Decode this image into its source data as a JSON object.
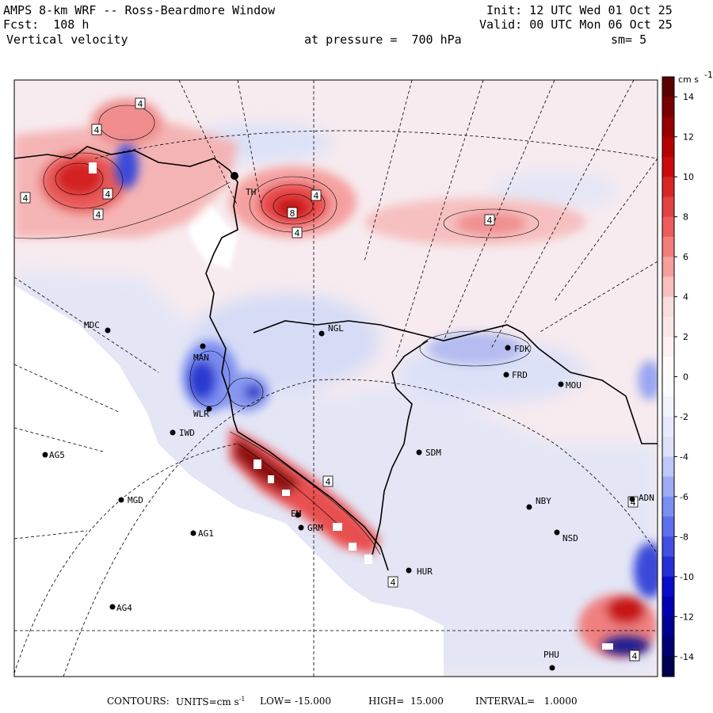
{
  "header": {
    "model": "AMPS 8-km WRF -- Ross-Beardmore Window",
    "forecast": "Fcst:  108 h",
    "field": "Vertical velocity",
    "init": "Init: 12 UTC Wed 01 Oct 25",
    "valid": "Valid: 00 UTC Mon 06 Oct 25",
    "pressure": "at pressure =  700 hPa",
    "smoothing": "sm= 5"
  },
  "colorbar": {
    "units": "cm s",
    "units_exp": "-1",
    "ticks": [
      "14",
      "12",
      "10",
      "8",
      "6",
      "4",
      "2",
      "0",
      "-2",
      "-4",
      "-6",
      "-8",
      "-10",
      "-12",
      "-14"
    ],
    "colors": {
      "max": "#5a0000",
      "strong_pos": "#c80000",
      "pos": "#f06464",
      "weak_pos": "#fadcdc",
      "zero": "#ffffff",
      "weak_neg": "#dce1fa",
      "neg": "#6478f0",
      "strong_neg": "#0000c8",
      "min": "#000050"
    }
  },
  "stations": [
    {
      "code": "MDC"
    },
    {
      "code": "NGL"
    },
    {
      "code": "FDK"
    },
    {
      "code": "FRD"
    },
    {
      "code": "MOU"
    },
    {
      "code": "MAN"
    },
    {
      "code": "WLR"
    },
    {
      "code": "IWD"
    },
    {
      "code": "AG5"
    },
    {
      "code": "SDM"
    },
    {
      "code": "MGD"
    },
    {
      "code": "NBY"
    },
    {
      "code": "AG1"
    },
    {
      "code": "GRM"
    },
    {
      "code": "NSD"
    },
    {
      "code": "HUR"
    },
    {
      "code": "AG4"
    },
    {
      "code": "PHU"
    },
    {
      "code": "ADN"
    },
    {
      "code": "TH"
    },
    {
      "code": "EM"
    }
  ],
  "contour_labels": [
    "4",
    "4",
    "4",
    "4",
    "4",
    "4",
    "8",
    "4",
    "4",
    "4",
    "4",
    "4",
    "4"
  ],
  "footer": {
    "contours_label": "CONTOURS:",
    "units_label": "UNITS=cm s",
    "units_exp": "-1",
    "low": "LOW= -15.000",
    "high": "HIGH=  15.000",
    "interval": "INTERVAL=   1.0000"
  }
}
